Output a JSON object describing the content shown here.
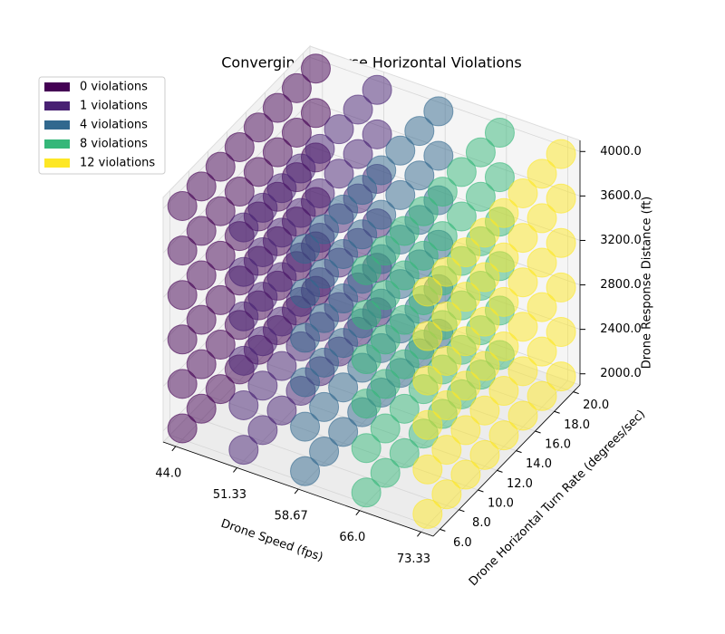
{
  "chart_data": {
    "type": "scatter3d",
    "title": "Converging Adverse Horizontal Violations",
    "xlabel": "Drone Speed (fps)",
    "ylabel": "Drone Horizontal Turn Rate (degrees/sec)",
    "zlabel": "Drone Response Distance (ft)",
    "xlim": [
      42.5,
      74.8
    ],
    "ylim": [
      5.3,
      20.7
    ],
    "zlim": [
      1900,
      4100
    ],
    "xticks": [
      {
        "value": 44,
        "label": "44.0"
      },
      51.33,
      58.67,
      {
        "value": 66,
        "label": "66.0"
      },
      73.33
    ],
    "yticks": [
      {
        "value": 6,
        "label": "6.0"
      },
      {
        "value": 8,
        "label": "8.0"
      },
      {
        "value": 10,
        "label": "10.0"
      },
      {
        "value": 12,
        "label": "12.0"
      },
      {
        "value": 14,
        "label": "14.0"
      },
      {
        "value": 16,
        "label": "16.0"
      },
      {
        "value": 18,
        "label": "18.0"
      },
      {
        "value": 20,
        "label": "20.0"
      }
    ],
    "zticks": [
      {
        "value": 2000,
        "label": "2000.0"
      },
      {
        "value": 2400,
        "label": "2400.0"
      },
      {
        "value": 2800,
        "label": "2800.0"
      },
      {
        "value": 3200,
        "label": "3200.0"
      },
      {
        "value": 3600,
        "label": "3600.0"
      },
      {
        "value": 4000,
        "label": "4000.0"
      }
    ],
    "legend": "upper left",
    "series": [
      {
        "name": "0 violations",
        "color": "#440154",
        "x": [
          44,
          44,
          44,
          44,
          44,
          44,
          44,
          44,
          44,
          44,
          44,
          44,
          44,
          44,
          44,
          44,
          44,
          44,
          44,
          44,
          44,
          44,
          44,
          44,
          44,
          44,
          44,
          44,
          44,
          44,
          44,
          44,
          44,
          44,
          44,
          44,
          44,
          44,
          44,
          44,
          44,
          44,
          44,
          44,
          44,
          44,
          44,
          44
        ],
        "y": [
          6,
          6,
          6,
          6,
          6,
          6,
          8,
          8,
          8,
          8,
          8,
          8,
          10,
          10,
          10,
          10,
          10,
          10,
          12,
          12,
          12,
          12,
          12,
          12,
          14,
          14,
          14,
          14,
          14,
          14,
          16,
          16,
          16,
          16,
          16,
          16,
          18,
          18,
          18,
          18,
          18,
          18,
          20,
          20,
          20,
          20,
          20,
          20
        ],
        "z": [
          2000,
          2400,
          2800,
          3200,
          3600,
          4000,
          2000,
          2400,
          2800,
          3200,
          3600,
          4000,
          2000,
          2400,
          2800,
          3200,
          3600,
          4000,
          2000,
          2400,
          2800,
          3200,
          3600,
          4000,
          2000,
          2400,
          2800,
          3200,
          3600,
          4000,
          2000,
          2400,
          2800,
          3200,
          3600,
          4000,
          2000,
          2400,
          2800,
          3200,
          3600,
          4000,
          2000,
          2400,
          2800,
          3200,
          3600,
          4000
        ]
      },
      {
        "name": "1 violations",
        "color": "#482173",
        "x": [
          51.33,
          51.33,
          51.33,
          51.33,
          51.33,
          51.33,
          51.33,
          51.33,
          51.33,
          51.33,
          51.33,
          51.33,
          51.33,
          51.33,
          51.33,
          51.33,
          51.33,
          51.33,
          51.33,
          51.33,
          51.33,
          51.33,
          51.33,
          51.33,
          51.33,
          51.33,
          51.33,
          51.33,
          51.33,
          51.33,
          51.33,
          51.33,
          51.33,
          51.33,
          51.33,
          51.33,
          51.33,
          51.33,
          51.33,
          51.33,
          51.33,
          51.33,
          51.33,
          51.33,
          51.33,
          51.33,
          51.33,
          51.33
        ],
        "y": [
          6,
          6,
          6,
          6,
          6,
          6,
          8,
          8,
          8,
          8,
          8,
          8,
          10,
          10,
          10,
          10,
          10,
          10,
          12,
          12,
          12,
          12,
          12,
          12,
          14,
          14,
          14,
          14,
          14,
          14,
          16,
          16,
          16,
          16,
          16,
          16,
          18,
          18,
          18,
          18,
          18,
          18,
          20,
          20,
          20,
          20,
          20,
          20
        ],
        "z": [
          2000,
          2400,
          2800,
          3200,
          3600,
          4000,
          2000,
          2400,
          2800,
          3200,
          3600,
          4000,
          2000,
          2400,
          2800,
          3200,
          3600,
          4000,
          2000,
          2400,
          2800,
          3200,
          3600,
          4000,
          2000,
          2400,
          2800,
          3200,
          3600,
          4000,
          2000,
          2400,
          2800,
          3200,
          3600,
          4000,
          2000,
          2400,
          2800,
          3200,
          3600,
          4000,
          2000,
          2400,
          2800,
          3200,
          3600,
          4000
        ]
      },
      {
        "name": "4 violations",
        "color": "#31688e",
        "x": [
          58.67,
          58.67,
          58.67,
          58.67,
          58.67,
          58.67,
          58.67,
          58.67,
          58.67,
          58.67,
          58.67,
          58.67,
          58.67,
          58.67,
          58.67,
          58.67,
          58.67,
          58.67,
          58.67,
          58.67,
          58.67,
          58.67,
          58.67,
          58.67,
          58.67,
          58.67,
          58.67,
          58.67,
          58.67,
          58.67,
          58.67,
          58.67,
          58.67,
          58.67,
          58.67,
          58.67,
          58.67,
          58.67,
          58.67,
          58.67,
          58.67,
          58.67,
          58.67,
          58.67,
          58.67,
          58.67,
          58.67,
          58.67
        ],
        "y": [
          6,
          6,
          6,
          6,
          6,
          6,
          8,
          8,
          8,
          8,
          8,
          8,
          10,
          10,
          10,
          10,
          10,
          10,
          12,
          12,
          12,
          12,
          12,
          12,
          14,
          14,
          14,
          14,
          14,
          14,
          16,
          16,
          16,
          16,
          16,
          16,
          18,
          18,
          18,
          18,
          18,
          18,
          20,
          20,
          20,
          20,
          20,
          20
        ],
        "z": [
          2000,
          2400,
          2800,
          3200,
          3600,
          4000,
          2000,
          2400,
          2800,
          3200,
          3600,
          4000,
          2000,
          2400,
          2800,
          3200,
          3600,
          4000,
          2000,
          2400,
          2800,
          3200,
          3600,
          4000,
          2000,
          2400,
          2800,
          3200,
          3600,
          4000,
          2000,
          2400,
          2800,
          3200,
          3600,
          4000,
          2000,
          2400,
          2800,
          3200,
          3600,
          4000,
          2000,
          2400,
          2800,
          3200,
          3600,
          4000
        ]
      },
      {
        "name": "8 violations",
        "color": "#35b779",
        "x": [
          66,
          66,
          66,
          66,
          66,
          66,
          66,
          66,
          66,
          66,
          66,
          66,
          66,
          66,
          66,
          66,
          66,
          66,
          66,
          66,
          66,
          66,
          66,
          66,
          66,
          66,
          66,
          66,
          66,
          66,
          66,
          66,
          66,
          66,
          66,
          66,
          66,
          66,
          66,
          66,
          66,
          66,
          66,
          66,
          66,
          66,
          66,
          66
        ],
        "y": [
          6,
          6,
          6,
          6,
          6,
          6,
          8,
          8,
          8,
          8,
          8,
          8,
          10,
          10,
          10,
          10,
          10,
          10,
          12,
          12,
          12,
          12,
          12,
          12,
          14,
          14,
          14,
          14,
          14,
          14,
          16,
          16,
          16,
          16,
          16,
          16,
          18,
          18,
          18,
          18,
          18,
          18,
          20,
          20,
          20,
          20,
          20,
          20
        ],
        "z": [
          2000,
          2400,
          2800,
          3200,
          3600,
          4000,
          2000,
          2400,
          2800,
          3200,
          3600,
          4000,
          2000,
          2400,
          2800,
          3200,
          3600,
          4000,
          2000,
          2400,
          2800,
          3200,
          3600,
          4000,
          2000,
          2400,
          2800,
          3200,
          3600,
          4000,
          2000,
          2400,
          2800,
          3200,
          3600,
          4000,
          2000,
          2400,
          2800,
          3200,
          3600,
          4000,
          2000,
          2400,
          2800,
          3200,
          3600,
          4000
        ]
      },
      {
        "name": "12 violations",
        "color": "#fde725",
        "x": [
          73.33,
          73.33,
          73.33,
          73.33,
          73.33,
          73.33,
          73.33,
          73.33,
          73.33,
          73.33,
          73.33,
          73.33,
          73.33,
          73.33,
          73.33,
          73.33,
          73.33,
          73.33,
          73.33,
          73.33,
          73.33,
          73.33,
          73.33,
          73.33,
          73.33,
          73.33,
          73.33,
          73.33,
          73.33,
          73.33,
          73.33,
          73.33,
          73.33,
          73.33,
          73.33,
          73.33,
          73.33,
          73.33,
          73.33,
          73.33,
          73.33,
          73.33,
          73.33,
          73.33,
          73.33,
          73.33,
          73.33,
          73.33
        ],
        "y": [
          6,
          6,
          6,
          6,
          6,
          6,
          8,
          8,
          8,
          8,
          8,
          8,
          10,
          10,
          10,
          10,
          10,
          10,
          12,
          12,
          12,
          12,
          12,
          12,
          14,
          14,
          14,
          14,
          14,
          14,
          16,
          16,
          16,
          16,
          16,
          16,
          18,
          18,
          18,
          18,
          18,
          18,
          20,
          20,
          20,
          20,
          20,
          20
        ],
        "z": [
          2000,
          2400,
          2800,
          3200,
          3600,
          4000,
          2000,
          2400,
          2800,
          3200,
          3600,
          4000,
          2000,
          2400,
          2800,
          3200,
          3600,
          4000,
          2000,
          2400,
          2800,
          3200,
          3600,
          4000,
          2000,
          2400,
          2800,
          3200,
          3600,
          4000,
          2000,
          2400,
          2800,
          3200,
          3600,
          4000,
          2000,
          2400,
          2800,
          3200,
          3600,
          4000,
          2000,
          2400,
          2800,
          3200,
          3600,
          4000
        ]
      }
    ]
  }
}
